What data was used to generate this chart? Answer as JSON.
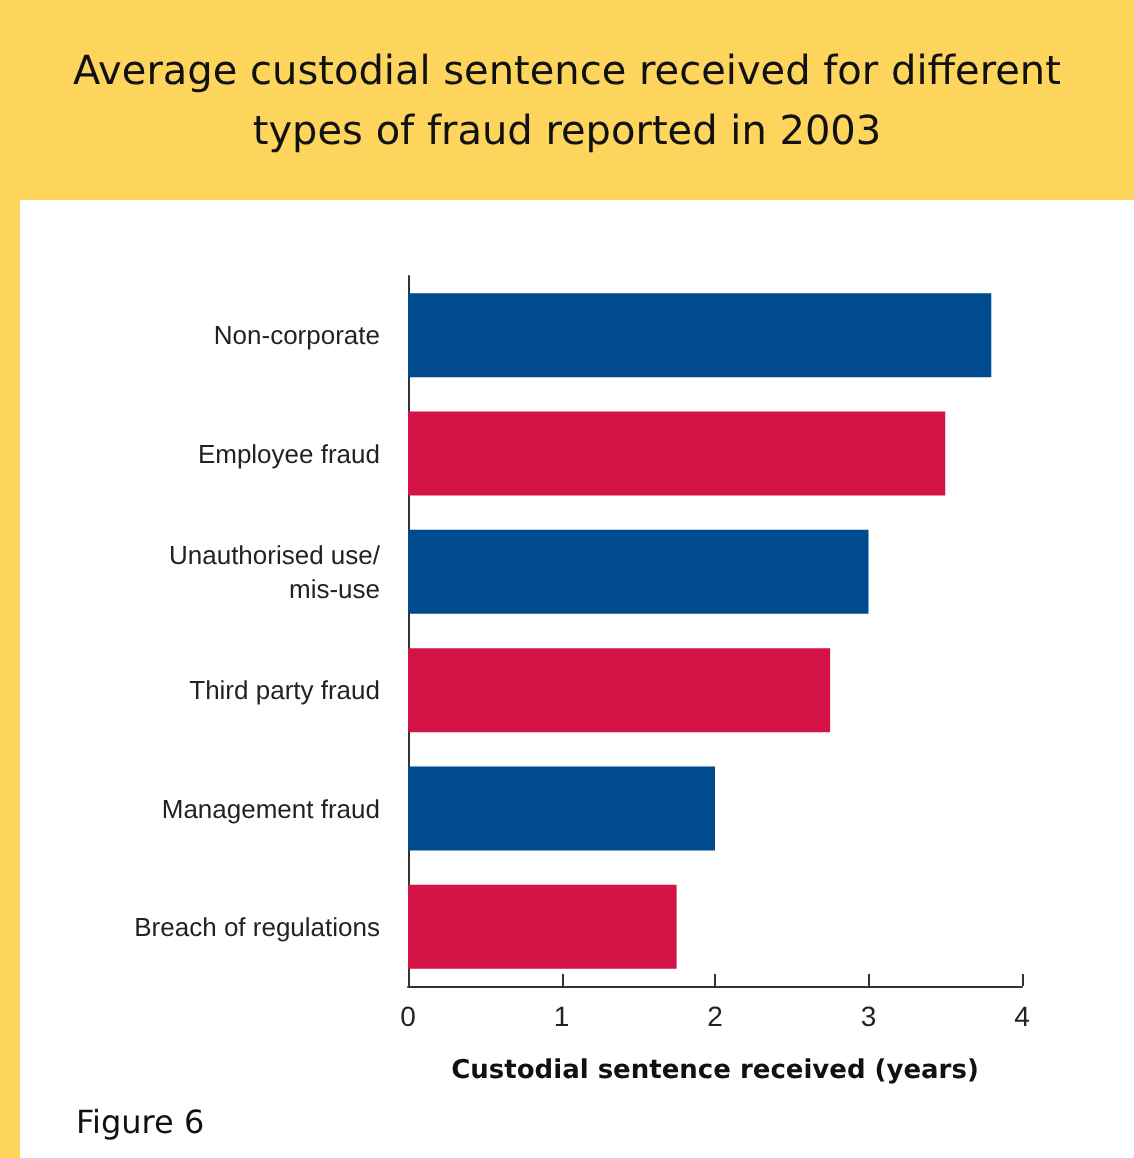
{
  "chart_data": {
    "type": "bar",
    "orientation": "horizontal",
    "title": "Average custodial sentence received for different types of fraud reported in 2003",
    "xlabel": "Custodial sentence received (years)",
    "categories": [
      "Non-corporate",
      "Employee fraud",
      "Unauthorised use/mis-use",
      "Third party fraud",
      "Management fraud",
      "Breach of regulations"
    ],
    "values": [
      3.8,
      3.5,
      3,
      2.75,
      2,
      1.75
    ],
    "colors": [
      "#004b8d",
      "#d31245",
      "#004b8d",
      "#d31245",
      "#004b8d",
      "#d31245"
    ],
    "xlim": [
      0,
      4
    ],
    "xticks": [
      0,
      1,
      2,
      3,
      4
    ],
    "grid": false,
    "annotations": [
      "Figure 6"
    ]
  }
}
